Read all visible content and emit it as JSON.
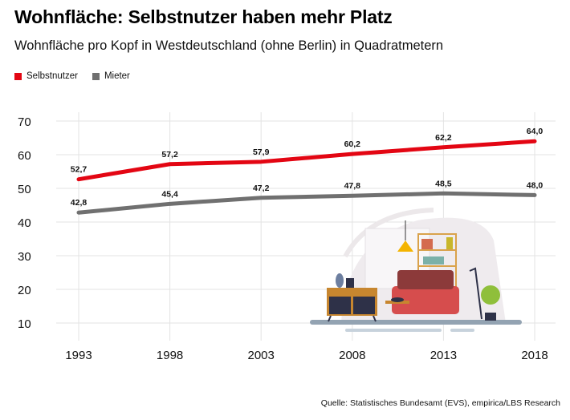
{
  "title": "Wohnfläche: Selbstnutzer haben mehr Platz",
  "subtitle": "Wohnfläche pro Kopf in Westdeutschland (ohne Berlin) in Quadratmetern",
  "source": "Quelle: Statistisches Bundesamt (EVS), empirica/LBS Research",
  "chart_data": {
    "type": "line",
    "title": "Wohnfläche: Selbstnutzer haben mehr Platz",
    "subtitle": "Wohnfläche pro Kopf in Westdeutschland (ohne Berlin) in Quadratmetern",
    "x": [
      "1993",
      "1998",
      "2003",
      "2008",
      "2013",
      "2018"
    ],
    "ylim": [
      10,
      70
    ],
    "yticks": [
      "10",
      "20",
      "30",
      "40",
      "50",
      "60",
      "70"
    ],
    "grid": true,
    "legend_position": "top-left",
    "series": [
      {
        "name": "Selbstnutzer",
        "color": "#e30613",
        "values": [
          52.7,
          57.2,
          57.9,
          60.2,
          62.2,
          64.0
        ],
        "labels": [
          "52,7",
          "57,2",
          "57,9",
          "60,2",
          "62,2",
          "64,0"
        ]
      },
      {
        "name": "Mieter",
        "color": "#707070",
        "values": [
          42.8,
          45.4,
          47.2,
          47.8,
          48.5,
          48.0
        ],
        "labels": [
          "42,8",
          "45,4",
          "47,2",
          "47,8",
          "48,5",
          "48,0"
        ]
      }
    ]
  }
}
